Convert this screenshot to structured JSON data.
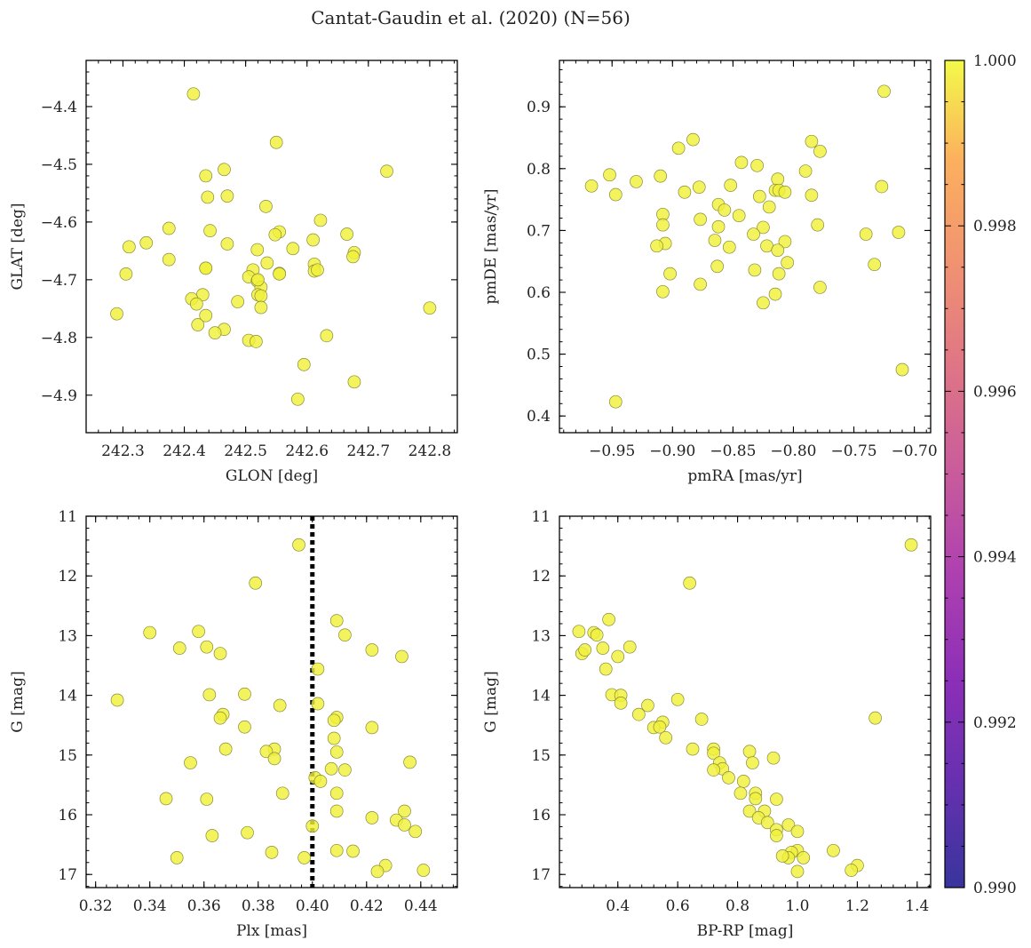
{
  "title": "Cantat-Gaudin et al. (2020) (N=56)",
  "marker_color": "#f0f03a",
  "marker_edge": "#8a8a3a",
  "colorbar": {
    "vmin": 0.99,
    "vmax": 1.0,
    "ticks": [
      "0.990",
      "0.992",
      "0.994",
      "0.996",
      "0.998",
      "1.000"
    ],
    "tick_values": [
      0.99,
      0.992,
      0.994,
      0.996,
      0.998,
      1.0
    ],
    "colormap": "plasma"
  },
  "chart_data": [
    {
      "type": "scatter",
      "id": "glon-glat",
      "xlabel": "GLON [deg]",
      "ylabel": "GLAT [deg]",
      "xlim": [
        242.24,
        242.845
      ],
      "ylim": [
        -4.965,
        -4.32
      ],
      "xticks": [
        242.3,
        242.4,
        242.5,
        242.6,
        242.7,
        242.8
      ],
      "xtick_labels": [
        "242.3",
        "242.4",
        "242.5",
        "242.6",
        "242.7",
        "242.8"
      ],
      "yticks": [
        -4.4,
        -4.5,
        -4.6,
        -4.7,
        -4.8,
        -4.9
      ],
      "ytick_labels": [
        "−4.4",
        "−4.5",
        "−4.6",
        "−4.7",
        "−4.8",
        "−4.9"
      ],
      "points": [
        [
          242.415,
          -4.378
        ],
        [
          242.55,
          -4.462
        ],
        [
          242.73,
          -4.512
        ],
        [
          242.465,
          -4.509
        ],
        [
          242.435,
          -4.52
        ],
        [
          242.47,
          -4.555
        ],
        [
          242.438,
          -4.557
        ],
        [
          242.533,
          -4.573
        ],
        [
          242.622,
          -4.597
        ],
        [
          242.375,
          -4.611
        ],
        [
          242.442,
          -4.615
        ],
        [
          242.555,
          -4.617
        ],
        [
          242.548,
          -4.622
        ],
        [
          242.665,
          -4.621
        ],
        [
          242.61,
          -4.631
        ],
        [
          242.338,
          -4.636
        ],
        [
          242.47,
          -4.638
        ],
        [
          242.31,
          -4.643
        ],
        [
          242.577,
          -4.646
        ],
        [
          242.519,
          -4.648
        ],
        [
          242.677,
          -4.653
        ],
        [
          242.675,
          -4.66
        ],
        [
          242.375,
          -4.665
        ],
        [
          242.535,
          -4.671
        ],
        [
          242.612,
          -4.673
        ],
        [
          242.435,
          -4.68
        ],
        [
          242.512,
          -4.683
        ],
        [
          242.612,
          -4.685
        ],
        [
          242.555,
          -4.689
        ],
        [
          242.305,
          -4.69
        ],
        [
          242.505,
          -4.695
        ],
        [
          242.519,
          -4.702
        ],
        [
          242.525,
          -4.713
        ],
        [
          242.52,
          -4.726
        ],
        [
          242.525,
          -4.728
        ],
        [
          242.43,
          -4.726
        ],
        [
          242.412,
          -4.733
        ],
        [
          242.487,
          -4.738
        ],
        [
          242.42,
          -4.742
        ],
        [
          242.525,
          -4.748
        ],
        [
          242.8,
          -4.749
        ],
        [
          242.29,
          -4.759
        ],
        [
          242.435,
          -4.762
        ],
        [
          242.422,
          -4.778
        ],
        [
          242.465,
          -4.786
        ],
        [
          242.45,
          -4.792
        ],
        [
          242.632,
          -4.797
        ],
        [
          242.505,
          -4.805
        ],
        [
          242.517,
          -4.807
        ],
        [
          242.595,
          -4.847
        ],
        [
          242.677,
          -4.877
        ],
        [
          242.585,
          -4.907
        ],
        [
          242.52,
          -4.7
        ],
        [
          242.617,
          -4.683
        ],
        [
          242.555,
          -4.69
        ],
        [
          242.435,
          -4.68
        ]
      ]
    },
    {
      "type": "scatter",
      "id": "pmra-pmde",
      "xlabel": "pmRA [mas/yr]",
      "ylabel": "pmDE [mas/yr]",
      "xlim": [
        -0.9935,
        -0.6865
      ],
      "ylim": [
        0.373,
        0.975
      ],
      "xticks": [
        -0.95,
        -0.9,
        -0.85,
        -0.8,
        -0.75,
        -0.7
      ],
      "xtick_labels": [
        "−0.95",
        "−0.90",
        "−0.85",
        "−0.80",
        "−0.75",
        "−0.70"
      ],
      "yticks": [
        0.4,
        0.5,
        0.6,
        0.7,
        0.8,
        0.9
      ],
      "ytick_labels": [
        "0.4",
        "0.5",
        "0.6",
        "0.7",
        "0.8",
        "0.9"
      ],
      "points": [
        [
          -0.725,
          0.925
        ],
        [
          -0.883,
          0.847
        ],
        [
          -0.785,
          0.844
        ],
        [
          -0.895,
          0.833
        ],
        [
          -0.778,
          0.828
        ],
        [
          -0.843,
          0.81
        ],
        [
          -0.83,
          0.805
        ],
        [
          -0.79,
          0.796
        ],
        [
          -0.952,
          0.79
        ],
        [
          -0.91,
          0.788
        ],
        [
          -0.813,
          0.783
        ],
        [
          -0.93,
          0.779
        ],
        [
          -0.967,
          0.772
        ],
        [
          -0.852,
          0.773
        ],
        [
          -0.727,
          0.771
        ],
        [
          -0.878,
          0.77
        ],
        [
          -0.815,
          0.765
        ],
        [
          -0.812,
          0.765
        ],
        [
          -0.807,
          0.762
        ],
        [
          -0.89,
          0.762
        ],
        [
          -0.947,
          0.758
        ],
        [
          -0.785,
          0.757
        ],
        [
          -0.828,
          0.755
        ],
        [
          -0.862,
          0.742
        ],
        [
          -0.82,
          0.738
        ],
        [
          -0.857,
          0.733
        ],
        [
          -0.908,
          0.726
        ],
        [
          -0.845,
          0.724
        ],
        [
          -0.877,
          0.718
        ],
        [
          -0.908,
          0.709
        ],
        [
          -0.78,
          0.709
        ],
        [
          -0.825,
          0.705
        ],
        [
          -0.862,
          0.706
        ],
        [
          -0.713,
          0.697
        ],
        [
          -0.74,
          0.694
        ],
        [
          -0.833,
          0.694
        ],
        [
          -0.865,
          0.684
        ],
        [
          -0.807,
          0.682
        ],
        [
          -0.906,
          0.679
        ],
        [
          -0.913,
          0.675
        ],
        [
          -0.853,
          0.673
        ],
        [
          -0.822,
          0.675
        ],
        [
          -0.813,
          0.668
        ],
        [
          -0.805,
          0.648
        ],
        [
          -0.733,
          0.645
        ],
        [
          -0.863,
          0.642
        ],
        [
          -0.832,
          0.636
        ],
        [
          -0.902,
          0.63
        ],
        [
          -0.812,
          0.63
        ],
        [
          -0.877,
          0.613
        ],
        [
          -0.778,
          0.608
        ],
        [
          -0.908,
          0.601
        ],
        [
          -0.815,
          0.597
        ],
        [
          -0.825,
          0.583
        ],
        [
          -0.71,
          0.475
        ],
        [
          -0.947,
          0.423
        ]
      ]
    },
    {
      "type": "scatter",
      "id": "plx-g",
      "xlabel": "Plx [mas]",
      "ylabel": "G [mag]",
      "xlim": [
        0.3165,
        0.4535
      ],
      "ylim": [
        17.22,
        11.0
      ],
      "inverted_y": true,
      "vline": 0.4,
      "xticks": [
        0.32,
        0.34,
        0.36,
        0.38,
        0.4,
        0.42,
        0.44
      ],
      "xtick_labels": [
        "0.32",
        "0.34",
        "0.36",
        "0.38",
        "0.40",
        "0.42",
        "0.44"
      ],
      "yticks": [
        11,
        12,
        13,
        14,
        15,
        16,
        17
      ],
      "ytick_labels": [
        "11",
        "12",
        "13",
        "14",
        "15",
        "16",
        "17"
      ],
      "points": [
        [
          0.395,
          11.48
        ],
        [
          0.379,
          12.12
        ],
        [
          0.409,
          12.75
        ],
        [
          0.34,
          12.95
        ],
        [
          0.358,
          12.93
        ],
        [
          0.412,
          12.99
        ],
        [
          0.351,
          13.21
        ],
        [
          0.361,
          13.19
        ],
        [
          0.366,
          13.3
        ],
        [
          0.422,
          13.24
        ],
        [
          0.433,
          13.35
        ],
        [
          0.402,
          13.56
        ],
        [
          0.328,
          14.08
        ],
        [
          0.362,
          13.99
        ],
        [
          0.375,
          13.98
        ],
        [
          0.402,
          14.14
        ],
        [
          0.388,
          14.17
        ],
        [
          0.367,
          14.32
        ],
        [
          0.366,
          14.38
        ],
        [
          0.409,
          14.37
        ],
        [
          0.408,
          14.42
        ],
        [
          0.422,
          14.54
        ],
        [
          0.375,
          14.53
        ],
        [
          0.408,
          14.72
        ],
        [
          0.368,
          14.9
        ],
        [
          0.386,
          14.9
        ],
        [
          0.383,
          14.94
        ],
        [
          0.409,
          14.95
        ],
        [
          0.386,
          15.06
        ],
        [
          0.355,
          15.13
        ],
        [
          0.436,
          15.12
        ],
        [
          0.407,
          15.23
        ],
        [
          0.412,
          15.25
        ],
        [
          0.401,
          15.38
        ],
        [
          0.403,
          15.44
        ],
        [
          0.409,
          15.64
        ],
        [
          0.389,
          15.64
        ],
        [
          0.346,
          15.73
        ],
        [
          0.361,
          15.74
        ],
        [
          0.409,
          15.94
        ],
        [
          0.434,
          15.94
        ],
        [
          0.422,
          16.05
        ],
        [
          0.431,
          16.09
        ],
        [
          0.434,
          16.17
        ],
        [
          0.4,
          16.19
        ],
        [
          0.438,
          16.28
        ],
        [
          0.376,
          16.3
        ],
        [
          0.363,
          16.35
        ],
        [
          0.385,
          16.63
        ],
        [
          0.409,
          16.6
        ],
        [
          0.415,
          16.61
        ],
        [
          0.35,
          16.72
        ],
        [
          0.397,
          16.72
        ],
        [
          0.427,
          16.85
        ],
        [
          0.424,
          16.95
        ],
        [
          0.441,
          16.93
        ]
      ]
    },
    {
      "type": "scatter",
      "id": "bprp-g",
      "xlabel": "BP-RP [mag]",
      "ylabel": "G [mag]",
      "xlim": [
        0.205,
        1.445
      ],
      "ylim": [
        17.22,
        11.0
      ],
      "inverted_y": true,
      "xticks": [
        0.4,
        0.6,
        0.8,
        1.0,
        1.2,
        1.4
      ],
      "xtick_labels": [
        "0.4",
        "0.6",
        "0.8",
        "1.0",
        "1.2",
        "1.4"
      ],
      "yticks": [
        11,
        12,
        13,
        14,
        15,
        16,
        17
      ],
      "ytick_labels": [
        "11",
        "12",
        "13",
        "14",
        "15",
        "16",
        "17"
      ],
      "points": [
        [
          1.38,
          11.48
        ],
        [
          0.64,
          12.12
        ],
        [
          0.27,
          12.93
        ],
        [
          0.32,
          12.95
        ],
        [
          0.33,
          12.99
        ],
        [
          0.37,
          12.73
        ],
        [
          0.44,
          13.19
        ],
        [
          0.28,
          13.3
        ],
        [
          0.29,
          13.24
        ],
        [
          0.35,
          13.21
        ],
        [
          0.4,
          13.35
        ],
        [
          0.36,
          13.56
        ],
        [
          0.38,
          13.99
        ],
        [
          0.41,
          14.0
        ],
        [
          0.41,
          14.13
        ],
        [
          0.5,
          14.17
        ],
        [
          0.6,
          14.07
        ],
        [
          0.47,
          14.32
        ],
        [
          0.68,
          14.4
        ],
        [
          1.26,
          14.38
        ],
        [
          0.55,
          14.45
        ],
        [
          0.52,
          14.54
        ],
        [
          0.54,
          14.53
        ],
        [
          0.56,
          14.71
        ],
        [
          0.65,
          14.9
        ],
        [
          0.72,
          14.9
        ],
        [
          0.84,
          14.94
        ],
        [
          0.72,
          14.97
        ],
        [
          0.92,
          15.05
        ],
        [
          0.85,
          15.13
        ],
        [
          0.74,
          15.13
        ],
        [
          0.75,
          15.23
        ],
        [
          0.72,
          15.25
        ],
        [
          0.77,
          15.38
        ],
        [
          0.82,
          15.44
        ],
        [
          0.86,
          15.64
        ],
        [
          0.81,
          15.64
        ],
        [
          0.86,
          15.73
        ],
        [
          0.93,
          15.74
        ],
        [
          0.84,
          15.94
        ],
        [
          0.89,
          15.94
        ],
        [
          0.87,
          16.05
        ],
        [
          0.9,
          16.13
        ],
        [
          0.97,
          16.17
        ],
        [
          0.93,
          16.25
        ],
        [
          1.0,
          16.28
        ],
        [
          0.93,
          16.35
        ],
        [
          1.0,
          16.6
        ],
        [
          0.98,
          16.63
        ],
        [
          1.12,
          16.6
        ],
        [
          0.97,
          16.72
        ],
        [
          1.02,
          16.72
        ],
        [
          1.2,
          16.85
        ],
        [
          1.18,
          16.93
        ],
        [
          1.0,
          16.95
        ],
        [
          0.95,
          16.69
        ]
      ]
    }
  ]
}
